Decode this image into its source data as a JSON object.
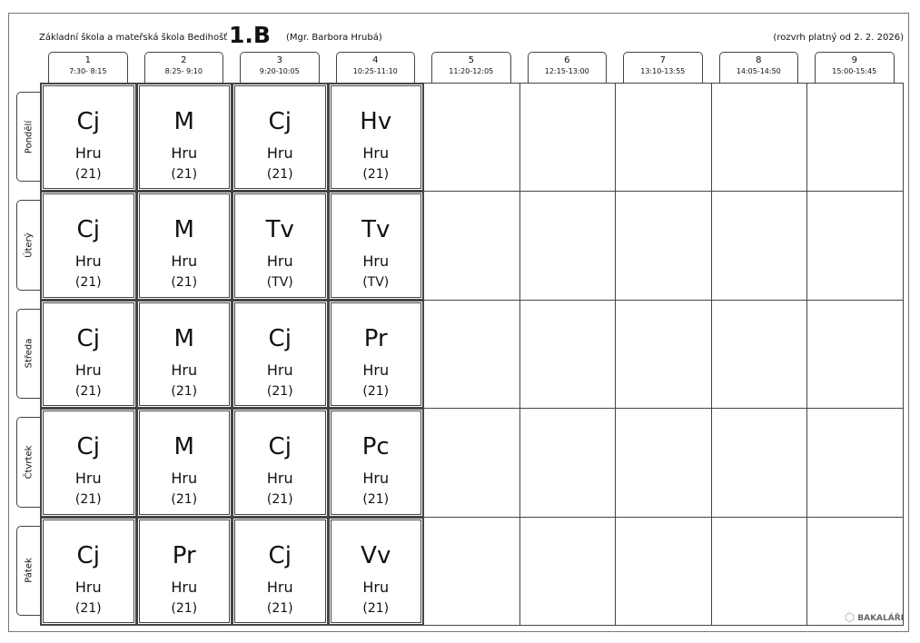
{
  "header": {
    "school": "Základní škola a mateřská škola Bedihošť",
    "class": "1.B",
    "teacher": "(Mgr. Barbora Hrubá)",
    "valid": "(rozvrh platný od 2. 2. 2026)"
  },
  "periods": [
    {
      "num": "1",
      "time": "7:30- 8:15"
    },
    {
      "num": "2",
      "time": "8:25- 9:10"
    },
    {
      "num": "3",
      "time": "9:20-10:05"
    },
    {
      "num": "4",
      "time": "10:25-11:10"
    },
    {
      "num": "5",
      "time": "11:20-12:05"
    },
    {
      "num": "6",
      "time": "12:15-13:00"
    },
    {
      "num": "7",
      "time": "13:10-13:55"
    },
    {
      "num": "8",
      "time": "14:05-14:50"
    },
    {
      "num": "9",
      "time": "15:00-15:45"
    }
  ],
  "days": [
    {
      "name": "Pondělí",
      "lessons": [
        {
          "s": "Cj",
          "t": "Hru",
          "r": "(21)"
        },
        {
          "s": "M",
          "t": "Hru",
          "r": "(21)"
        },
        {
          "s": "Cj",
          "t": "Hru",
          "r": "(21)"
        },
        {
          "s": "Hv",
          "t": "Hru",
          "r": "(21)"
        }
      ]
    },
    {
      "name": "Úterý",
      "lessons": [
        {
          "s": "Cj",
          "t": "Hru",
          "r": "(21)"
        },
        {
          "s": "M",
          "t": "Hru",
          "r": "(21)"
        },
        {
          "s": "Tv",
          "t": "Hru",
          "r": "(TV)"
        },
        {
          "s": "Tv",
          "t": "Hru",
          "r": "(TV)"
        }
      ]
    },
    {
      "name": "Středa",
      "lessons": [
        {
          "s": "Cj",
          "t": "Hru",
          "r": "(21)"
        },
        {
          "s": "M",
          "t": "Hru",
          "r": "(21)"
        },
        {
          "s": "Cj",
          "t": "Hru",
          "r": "(21)"
        },
        {
          "s": "Pr",
          "t": "Hru",
          "r": "(21)"
        }
      ]
    },
    {
      "name": "Čtvrtek",
      "lessons": [
        {
          "s": "Cj",
          "t": "Hru",
          "r": "(21)"
        },
        {
          "s": "M",
          "t": "Hru",
          "r": "(21)"
        },
        {
          "s": "Cj",
          "t": "Hru",
          "r": "(21)"
        },
        {
          "s": "Pc",
          "t": "Hru",
          "r": "(21)"
        }
      ]
    },
    {
      "name": "Pátek",
      "lessons": [
        {
          "s": "Cj",
          "t": "Hru",
          "r": "(21)"
        },
        {
          "s": "Pr",
          "t": "Hru",
          "r": "(21)"
        },
        {
          "s": "Cj",
          "t": "Hru",
          "r": "(21)"
        },
        {
          "s": "Vv",
          "t": "Hru",
          "r": "(21)"
        }
      ]
    }
  ],
  "logo": "BAKALÁŘI"
}
